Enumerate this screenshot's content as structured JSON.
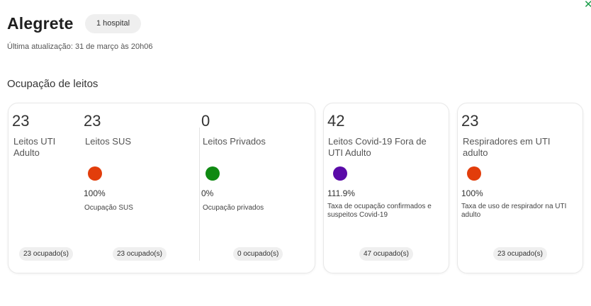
{
  "header": {
    "title": "Alegrete",
    "hospital_badge": "1 hospital",
    "updated": "Última atualização: 31 de março às 20h06"
  },
  "section_title": "Ocupação de leitos",
  "icons": {
    "close": "close-icon"
  },
  "colors": {
    "high": "#e23d0b",
    "low": "#0f8a12",
    "purple": "#5a0aa8",
    "close": "#1b9e4b"
  },
  "uti_adulto": {
    "value": "23",
    "label": "Leitos UTI Adulto",
    "occupied": "23 ocupado(s)"
  },
  "sus": {
    "value": "23",
    "label": "Leitos SUS",
    "percent": "100%",
    "desc": "Ocupação SUS",
    "occupied": "23 ocupado(s)",
    "occupancy_fraction": 1.0
  },
  "privados": {
    "value": "0",
    "label": "Leitos Privados",
    "percent": "0%",
    "desc": "Ocupação privados",
    "occupied": "0 ocupado(s)",
    "occupancy_fraction": 0.0
  },
  "covid": {
    "value": "42",
    "label": "Leitos Covid-19 Fora de UTI Adulto",
    "percent": "111.9%",
    "desc": "Taxa de ocupação confirmados e suspeitos Covid-19",
    "occupied": "47 ocupado(s)",
    "occupancy_fraction": 1.119
  },
  "respiradores": {
    "value": "23",
    "label": "Respiradores em UTI adulto",
    "percent": "100%",
    "desc": "Taxa de uso de respirador na UTI adulto",
    "occupied": "23 ocupado(s)",
    "occupancy_fraction": 1.0
  }
}
